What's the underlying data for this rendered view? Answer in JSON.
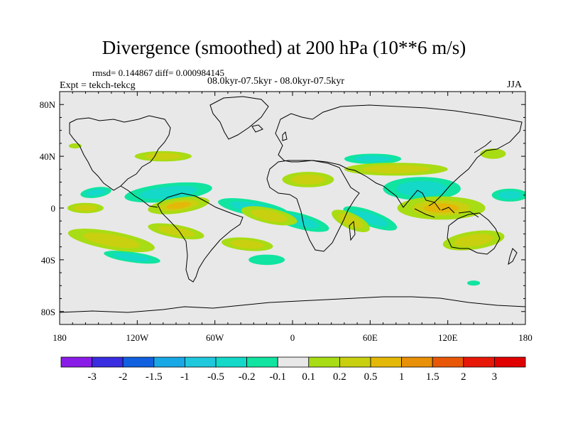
{
  "header": {
    "title": "Divergence (smoothed) at 200 hPa (10**6 m/s)",
    "stats": "rmsd= 0.144867 diff= 0.000984145",
    "periods": "08.0kyr-07.5kyr - 08.0kyr-07.5kyr",
    "expt": "Expt = tekch-tekcg",
    "season": "JJA"
  },
  "chart_data": {
    "type": "heatmap",
    "title": "Divergence (smoothed) at 200 hPa (10**6 m/s)",
    "projection": "cylindrical equidistant, global",
    "x_range": [
      -180,
      180
    ],
    "y_range": [
      -90,
      90
    ],
    "x_ticks": [
      {
        "value": -180,
        "label": "180"
      },
      {
        "value": -120,
        "label": "120W"
      },
      {
        "value": -60,
        "label": "60W"
      },
      {
        "value": 0,
        "label": "0"
      },
      {
        "value": 60,
        "label": "60E"
      },
      {
        "value": 120,
        "label": "120E"
      },
      {
        "value": 180,
        "label": "180"
      }
    ],
    "y_ticks": [
      {
        "value": 80,
        "label": "80N"
      },
      {
        "value": 40,
        "label": "40N"
      },
      {
        "value": 0,
        "label": "0"
      },
      {
        "value": -40,
        "label": "40S"
      },
      {
        "value": -80,
        "label": "80S"
      }
    ],
    "levels": [
      "-3",
      "-2",
      "-1.5",
      "-1",
      "-0.5",
      "-0.2",
      "-0.1",
      "0.1",
      "0.2",
      "0.5",
      "1",
      "1.5",
      "2",
      "3"
    ],
    "colors": [
      "#8a1ce8",
      "#3a2ce0",
      "#1060e0",
      "#18a8e6",
      "#20c8de",
      "#14d8c8",
      "#10e4a0",
      "#e8e8e8",
      "#a8dc14",
      "#c8d010",
      "#e4b808",
      "#e89008",
      "#e85808",
      "#e81808",
      "#e00000"
    ],
    "land_color": "#000000",
    "background_fill": "#e8e8e8",
    "features": [
      {
        "type": "negative",
        "lon": -152,
        "lat": 12,
        "a": 12,
        "b": 4,
        "rot": -8,
        "value": -0.3
      },
      {
        "type": "negative",
        "lon": -96,
        "lat": 12,
        "a": 34,
        "b": 7,
        "rot": -6,
        "value": -0.5
      },
      {
        "type": "negative",
        "lon": -30,
        "lat": 0,
        "a": 28,
        "b": 6,
        "rot": 10,
        "value": -0.3
      },
      {
        "type": "negative",
        "lon": 5,
        "lat": -10,
        "a": 24,
        "b": 6,
        "rot": 15,
        "value": -0.3
      },
      {
        "type": "negative",
        "lon": 60,
        "lat": -8,
        "a": 22,
        "b": 6,
        "rot": 20,
        "value": -0.5
      },
      {
        "type": "negative",
        "lon": 100,
        "lat": 15,
        "a": 30,
        "b": 9,
        "rot": 0,
        "value": -0.5
      },
      {
        "type": "negative",
        "lon": 168,
        "lat": 10,
        "a": 14,
        "b": 5,
        "rot": 0,
        "value": -0.3
      },
      {
        "type": "negative",
        "lon": 62,
        "lat": 38,
        "a": 22,
        "b": 4,
        "rot": 0,
        "value": -0.3
      },
      {
        "type": "negative",
        "lon": -124,
        "lat": -38,
        "a": 22,
        "b": 4,
        "rot": 8,
        "value": -0.3
      },
      {
        "type": "negative",
        "lon": -20,
        "lat": -40,
        "a": 14,
        "b": 4,
        "rot": 0,
        "value": -0.2
      },
      {
        "type": "negative",
        "lon": 140,
        "lat": -58,
        "a": 5,
        "b": 2,
        "rot": 0,
        "value": -0.2
      },
      {
        "type": "positive",
        "lon": -88,
        "lat": 2,
        "a": 24,
        "b": 6,
        "rot": -8,
        "value": 0.8
      },
      {
        "type": "positive",
        "lon": -160,
        "lat": 0,
        "a": 14,
        "b": 4,
        "rot": 0,
        "value": 0.3
      },
      {
        "type": "positive",
        "lon": -18,
        "lat": -6,
        "a": 22,
        "b": 6,
        "rot": 12,
        "value": 0.6
      },
      {
        "type": "positive",
        "lon": 45,
        "lat": -10,
        "a": 16,
        "b": 6,
        "rot": 25,
        "value": 0.4
      },
      {
        "type": "positive",
        "lon": 115,
        "lat": 0,
        "a": 34,
        "b": 9,
        "rot": 0,
        "value": 1.0
      },
      {
        "type": "positive",
        "lon": 12,
        "lat": 22,
        "a": 20,
        "b": 6,
        "rot": 0,
        "value": 0.4
      },
      {
        "type": "positive",
        "lon": -140,
        "lat": -25,
        "a": 34,
        "b": 7,
        "rot": 10,
        "value": 0.5
      },
      {
        "type": "positive",
        "lon": -90,
        "lat": -18,
        "a": 22,
        "b": 5,
        "rot": 10,
        "value": 0.3
      },
      {
        "type": "positive",
        "lon": -35,
        "lat": -28,
        "a": 20,
        "b": 5,
        "rot": 5,
        "value": 0.3
      },
      {
        "type": "positive",
        "lon": 140,
        "lat": -25,
        "a": 24,
        "b": 7,
        "rot": -8,
        "value": 0.3
      },
      {
        "type": "positive",
        "lon": 80,
        "lat": 30,
        "a": 40,
        "b": 5,
        "rot": 0,
        "value": 0.3
      },
      {
        "type": "positive",
        "lon": -100,
        "lat": 40,
        "a": 22,
        "b": 4,
        "rot": 0,
        "value": 0.3
      },
      {
        "type": "positive",
        "lon": 155,
        "lat": 42,
        "a": 10,
        "b": 4,
        "rot": 0,
        "value": 0.2
      },
      {
        "type": "positive",
        "lon": -168,
        "lat": 48,
        "a": 5,
        "b": 2,
        "rot": 0,
        "value": 0.2
      }
    ]
  },
  "colorbar": {
    "labels": [
      "-3",
      "-2",
      "-1.5",
      "-1",
      "-0.5",
      "-0.2",
      "-0.1",
      "0.1",
      "0.2",
      "0.5",
      "1",
      "1.5",
      "2",
      "3"
    ]
  }
}
